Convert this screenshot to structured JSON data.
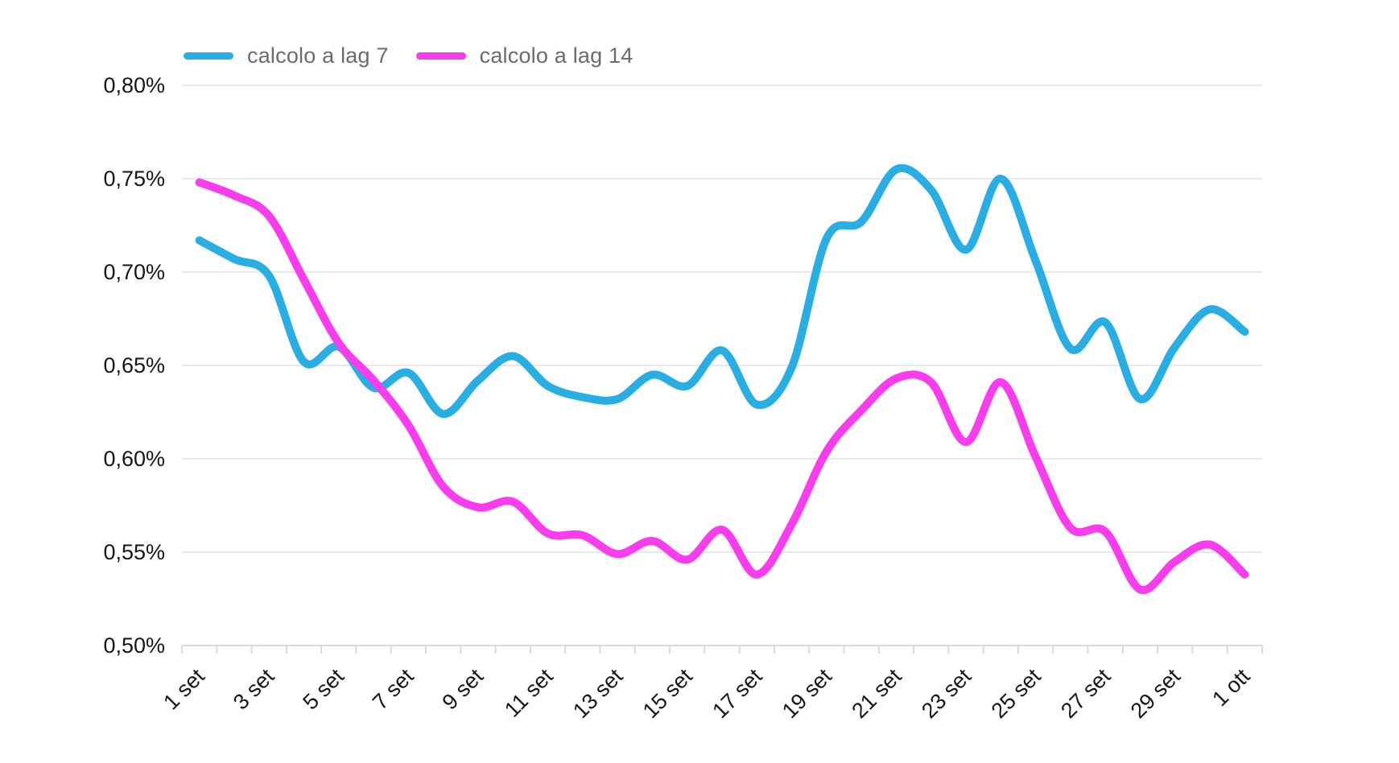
{
  "chart_data": {
    "type": "line",
    "title": "",
    "x": [
      "1 set",
      "2 set",
      "3 set",
      "4 set",
      "5 set",
      "6 set",
      "7 set",
      "8 set",
      "9 set",
      "10 set",
      "11 set",
      "12 set",
      "13 set",
      "14 set",
      "15 set",
      "16 set",
      "17 set",
      "18 set",
      "19 set",
      "20 set",
      "21 set",
      "22 set",
      "23 set",
      "24 set",
      "25 set",
      "26 set",
      "27 set",
      "28 set",
      "29 set",
      "30 set",
      "1 ott"
    ],
    "x_tick_label_every": 2,
    "y_ticks": [
      "0,80%",
      "0,75%",
      "0,70%",
      "0,65%",
      "0,60%",
      "0,55%",
      "0,50%"
    ],
    "ylim": [
      0.5,
      0.8
    ],
    "y_unit": "%",
    "decimal_separator": ",",
    "grid": "horizontal",
    "legend_position": "top-left",
    "series": [
      {
        "name": "calcolo a lag 7",
        "color": "#29AEE4",
        "values": [
          0.717,
          0.707,
          0.698,
          0.652,
          0.66,
          0.638,
          0.646,
          0.624,
          0.642,
          0.655,
          0.639,
          0.633,
          0.632,
          0.645,
          0.639,
          0.658,
          0.629,
          0.649,
          0.718,
          0.727,
          0.755,
          0.744,
          0.712,
          0.75,
          0.706,
          0.659,
          0.673,
          0.632,
          0.66,
          0.68,
          0.668
        ]
      },
      {
        "name": "calcolo a lag 14",
        "color": "#F83CEE",
        "values": [
          0.748,
          0.741,
          0.73,
          0.696,
          0.662,
          0.642,
          0.618,
          0.585,
          0.574,
          0.577,
          0.56,
          0.559,
          0.549,
          0.556,
          0.546,
          0.562,
          0.538,
          0.565,
          0.604,
          0.626,
          0.643,
          0.641,
          0.609,
          0.641,
          0.601,
          0.563,
          0.561,
          0.53,
          0.545,
          0.554,
          0.538
        ]
      }
    ]
  },
  "colors": {
    "background": "#ffffff",
    "grid_line": "#e8e8e8",
    "axis_line": "#dadada",
    "tick_label": "#161616",
    "legend_text": "#6b6b6b"
  }
}
